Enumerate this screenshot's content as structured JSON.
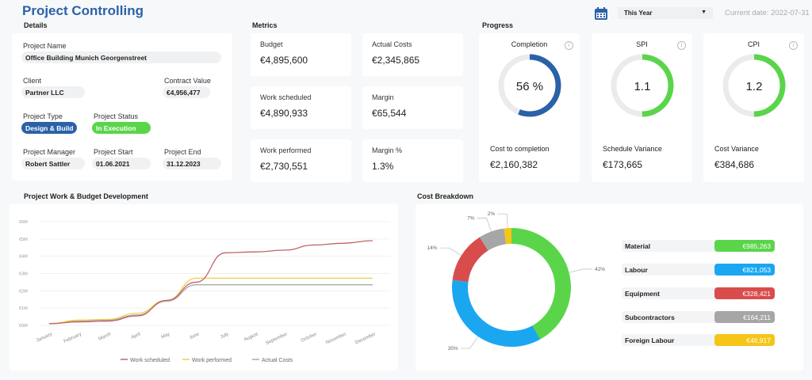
{
  "header": {
    "title": "Project Controlling",
    "period": "This Year",
    "current_date": "Current date: 2022-07-31",
    "calendar_icon": "calendar-icon"
  },
  "details": {
    "heading": "Details",
    "project_name_label": "Project Name",
    "project_name": "Office Building Munich Georgenstreet",
    "client_label": "Client",
    "client": "Partner LLC",
    "contract_value_label": "Contract Value",
    "contract_value": "€4,956,477",
    "project_type_label": "Project Type",
    "project_type": "Design & Build",
    "project_status_label": "Project Status",
    "project_status": "In Execution",
    "manager_label": "Project Manager",
    "manager": "Robert Sattler",
    "start_label": "Project Start",
    "start": "01.06.2021",
    "end_label": "Project End",
    "end": "31.12.2023"
  },
  "metrics": {
    "heading": "Metrics",
    "items": [
      {
        "label": "Budget",
        "value": "€4,895,600"
      },
      {
        "label": "Actual Costs",
        "value": "€2,345,865"
      },
      {
        "label": "Work scheduled",
        "value": "€4,890,933"
      },
      {
        "label": "Margin",
        "value": "€65,544"
      },
      {
        "label": "Work performed",
        "value": "€2,730,551"
      },
      {
        "label": "Margin %",
        "value": "1.3%"
      }
    ]
  },
  "progress": {
    "heading": "Progress",
    "items": [
      {
        "label": "Completion",
        "value": "56 %",
        "fraction": 0.56,
        "color": "#2a62a8",
        "sub_label": "Cost to completion",
        "sub_value": "€2,160,382"
      },
      {
        "label": "SPI",
        "value": "1.1",
        "fraction": 0.5,
        "color": "#5ad54a",
        "sub_label": "Schedule Variance",
        "sub_value": "€173,665"
      },
      {
        "label": "CPI",
        "value": "1.2",
        "fraction": 0.5,
        "color": "#5ad54a",
        "sub_label": "Cost Variance",
        "sub_value": "€384,686"
      }
    ]
  },
  "chart_data": [
    {
      "type": "line",
      "title": "Project Work & Budget Development",
      "categories": [
        "January",
        "February",
        "March",
        "April",
        "May",
        "June",
        "July",
        "August",
        "September",
        "October",
        "November",
        "December"
      ],
      "yticks": [
        "€0M",
        "€1M",
        "€2M",
        "€3M",
        "€4M",
        "€5M",
        "€6M"
      ],
      "ylim": [
        0,
        6
      ],
      "grid": true,
      "legend": "bottom",
      "series": [
        {
          "name": "Work scheduled",
          "color": "#c0626a",
          "values": [
            0.1,
            0.2,
            0.25,
            0.55,
            1.45,
            2.5,
            4.2,
            4.25,
            4.35,
            4.65,
            4.75,
            4.9
          ]
        },
        {
          "name": "Work performed",
          "color": "#ecd04a",
          "values": [
            0.1,
            0.3,
            0.35,
            0.7,
            1.45,
            2.73,
            2.73,
            2.73,
            2.73,
            2.73,
            2.73,
            2.73
          ]
        },
        {
          "name": "Actual Costs",
          "color": "#aaaaaa",
          "values": [
            0.1,
            0.25,
            0.3,
            0.6,
            1.4,
            2.35,
            2.35,
            2.35,
            2.35,
            2.35,
            2.35,
            2.35
          ]
        }
      ]
    },
    {
      "type": "pie",
      "title": "Cost Breakdown",
      "slices": [
        {
          "name": "Material",
          "percent": 42,
          "label": "42%",
          "value": "€985,263",
          "color": "#5ad54a"
        },
        {
          "name": "Labour",
          "percent": 35,
          "label": "35%",
          "value": "€821,053",
          "color": "#1aa7f0"
        },
        {
          "name": "Equipment",
          "percent": 14,
          "label": "14%",
          "value": "€328,421",
          "color": "#d94c4c"
        },
        {
          "name": "Subcontractors",
          "percent": 7,
          "label": "7%",
          "value": "€164,211",
          "color": "#a6a6a6"
        },
        {
          "name": "Foreign Labour",
          "percent": 2,
          "label": "2%",
          "value": "€46,917",
          "color": "#f5c518"
        }
      ]
    }
  ]
}
